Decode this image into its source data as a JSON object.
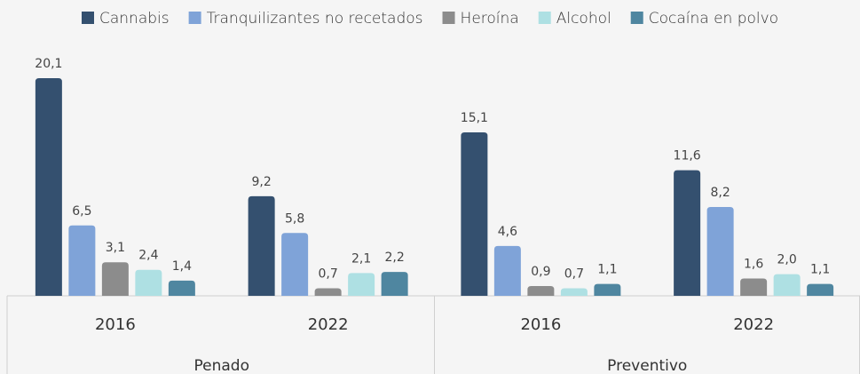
{
  "chart_data": {
    "type": "bar",
    "groups": [
      {
        "name": "Penado",
        "categories": [
          "2016",
          "2022"
        ]
      },
      {
        "name": "Preventivo",
        "categories": [
          "2016",
          "2022"
        ]
      }
    ],
    "series": [
      {
        "name": "Cannabis",
        "color": "#34506f",
        "values": [
          20.1,
          9.2,
          15.1,
          11.6
        ],
        "value_labels": [
          "20,1",
          "9,2",
          "15,1",
          "11,6"
        ]
      },
      {
        "name": "Tranquilizantes no recetados",
        "color": "#7fa3d8",
        "values": [
          6.5,
          5.8,
          4.6,
          8.2
        ],
        "value_labels": [
          "6,5",
          "5,8",
          "4,6",
          "8,2"
        ]
      },
      {
        "name": "Heroína",
        "color": "#8c8c8c",
        "values": [
          3.1,
          0.7,
          0.9,
          1.6
        ],
        "value_labels": [
          "3,1",
          "0,7",
          "0,9",
          "1,6"
        ]
      },
      {
        "name": "Alcohol",
        "color": "#aee0e3",
        "values": [
          2.4,
          2.1,
          0.7,
          2.0
        ],
        "value_labels": [
          "2,4",
          "2,1",
          "0,7",
          "2,0"
        ]
      },
      {
        "name": "Cocaína en polvo",
        "color": "#4f86a0",
        "values": [
          1.4,
          2.2,
          1.1,
          1.1
        ],
        "value_labels": [
          "1,4",
          "2,2",
          "1,1",
          "1,1"
        ]
      }
    ]
  }
}
